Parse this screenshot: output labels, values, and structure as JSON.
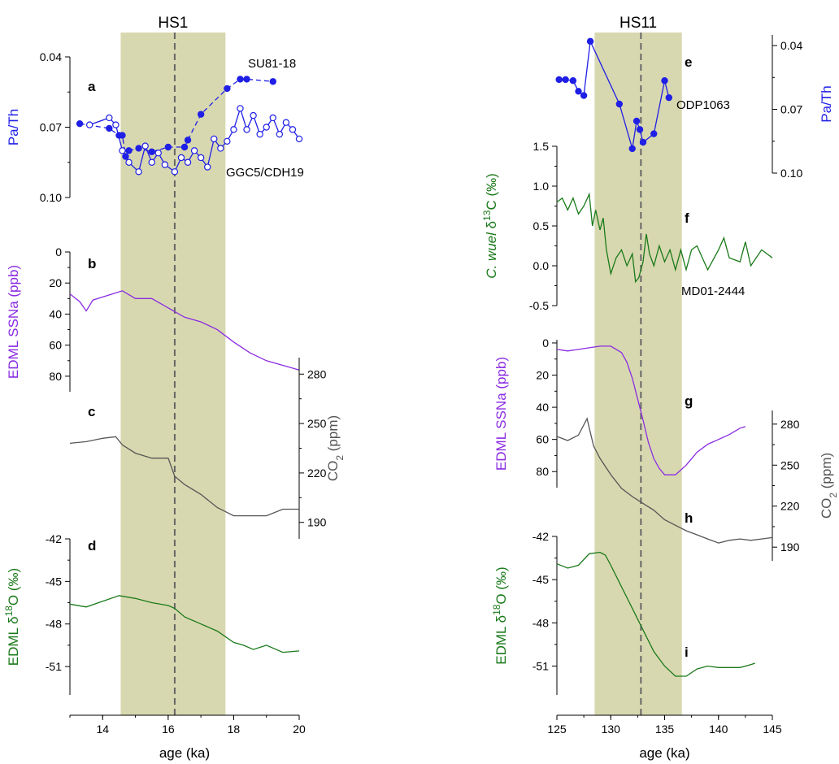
{
  "colors": {
    "pa": "#1f1fe6",
    "ssna": "#8a2be2",
    "co2": "#555555",
    "d18o": "#1a7a1a",
    "d13c": "#1a7a1a",
    "band": "#d8d8b0",
    "dash": "#666666"
  },
  "chart_data": [
    {
      "type": "line",
      "title": "HS1",
      "xlabel": "age (ka)",
      "xlim": [
        13,
        20
      ],
      "xticks": [
        "14",
        "16",
        "18",
        "20"
      ],
      "shaded_interval": [
        14.55,
        17.75
      ],
      "dashed_line": 16.2,
      "panels": [
        {
          "letter": "a",
          "ylabel": "Pa/Th",
          "ylim": [
            0.04,
            0.1
          ],
          "inverted": true,
          "yticks": [
            "0.04",
            "0.07",
            "0.10"
          ],
          "series": [
            {
              "name": "SU81-18",
              "marker": "filled",
              "dashed": true,
              "x": [
                13.3,
                14.2,
                14.5,
                14.6,
                14.7,
                14.8,
                15.1,
                15.5,
                16.0,
                16.5,
                16.6,
                17.0,
                17.8,
                18.2,
                18.4,
                19.2
              ],
              "y": [
                0.0685,
                0.0705,
                0.0735,
                0.0735,
                0.0825,
                0.08,
                0.079,
                0.0805,
                0.0785,
                0.0785,
                0.0755,
                0.0645,
                0.0535,
                0.0495,
                0.0495,
                0.0505
              ]
            },
            {
              "name": "GGC5/CDH19",
              "marker": "open",
              "dashed": false,
              "x": [
                13.6,
                14.2,
                14.4,
                14.6,
                14.8,
                15.1,
                15.3,
                15.5,
                15.7,
                15.9,
                16.2,
                16.4,
                16.6,
                16.8,
                17.0,
                17.2,
                17.4,
                17.6,
                17.8,
                18.0,
                18.2,
                18.4,
                18.6,
                18.8,
                19.0,
                19.2,
                19.4,
                19.6,
                19.8,
                20.0
              ],
              "y": [
                0.069,
                0.066,
                0.069,
                0.08,
                0.085,
                0.089,
                0.078,
                0.085,
                0.081,
                0.086,
                0.089,
                0.083,
                0.085,
                0.08,
                0.083,
                0.087,
                0.075,
                0.079,
                0.076,
                0.071,
                0.062,
                0.071,
                0.065,
                0.073,
                0.07,
                0.066,
                0.073,
                0.068,
                0.071,
                0.075
              ]
            }
          ]
        },
        {
          "letter": "b",
          "ylabel": "EDML SSNa (ppb)",
          "ylim": [
            0,
            90
          ],
          "inverted": true,
          "yticks": [
            "0",
            "20",
            "40",
            "60",
            "80"
          ],
          "series": [
            {
              "name": "",
              "x": [
                13.0,
                13.3,
                13.5,
                13.7,
                14.0,
                14.3,
                14.6,
                15.0,
                15.5,
                16.0,
                16.5,
                17.0,
                17.5,
                18.0,
                18.5,
                19.0,
                19.5,
                20.0
              ],
              "y": [
                27,
                32,
                38,
                31,
                29,
                27,
                25,
                30,
                30,
                36,
                42,
                45,
                50,
                58,
                65,
                70,
                73,
                76
              ]
            }
          ]
        },
        {
          "letter": "c",
          "ylabel": "CO2 (ppm)",
          "ylim": [
            180,
            290
          ],
          "yticks": [
            "190",
            "220",
            "250",
            "280"
          ],
          "series": [
            {
              "name": "",
              "x": [
                13.0,
                13.5,
                14.0,
                14.4,
                14.6,
                15.0,
                15.5,
                16.0,
                16.2,
                16.5,
                17.0,
                17.5,
                18.0,
                18.5,
                19.0,
                19.5,
                20.0
              ],
              "y": [
                238,
                239,
                241,
                242,
                237,
                232,
                229,
                229,
                218,
                213,
                207,
                199,
                194,
                194,
                194,
                198,
                198
              ]
            }
          ]
        },
        {
          "letter": "d",
          "ylabel": "EDML δ18O (‰)",
          "ylim": [
            -53,
            -42
          ],
          "yticks": [
            "-42",
            "-45",
            "-48",
            "-51"
          ],
          "series": [
            {
              "name": "",
              "x": [
                13.0,
                13.5,
                14.0,
                14.5,
                15.0,
                15.5,
                16.0,
                16.2,
                16.5,
                17.0,
                17.5,
                18.0,
                18.3,
                18.6,
                19.0,
                19.5,
                20.0
              ],
              "y": [
                -46.6,
                -46.8,
                -46.4,
                -46.0,
                -46.2,
                -46.5,
                -46.7,
                -46.9,
                -47.5,
                -48.0,
                -48.5,
                -49.3,
                -49.5,
                -49.8,
                -49.5,
                -50.0,
                -49.9
              ]
            }
          ]
        }
      ]
    },
    {
      "type": "line",
      "title": "HS11",
      "xlabel": "age (ka)",
      "xlim": [
        125,
        145
      ],
      "xticks": [
        "125",
        "130",
        "135",
        "140",
        "145"
      ],
      "shaded_interval": [
        128.5,
        136.6
      ],
      "dashed_line": 132.8,
      "panels": [
        {
          "letter": "e",
          "ylabel": "Pa/Th",
          "ylim": [
            0.035,
            0.1
          ],
          "inverted": true,
          "yticks": [
            "0.04",
            "0.07",
            "0.10"
          ],
          "series": [
            {
              "name": "ODP1063",
              "marker": "filled",
              "dashed": false,
              "x": [
                125.2,
                125.8,
                126.5,
                127.0,
                127.5,
                128.1,
                130.8,
                132.0,
                132.4,
                132.7,
                133.0,
                134.0,
                135.0,
                135.4
              ],
              "y": [
                0.056,
                0.056,
                0.0565,
                0.0615,
                0.0635,
                0.038,
                0.0675,
                0.0885,
                0.0755,
                0.0795,
                0.0855,
                0.0815,
                0.0565,
                0.0645
              ]
            }
          ]
        },
        {
          "letter": "f",
          "ylabel": "C. wuel δ13C (‰)",
          "ylim": [
            -0.5,
            1.5
          ],
          "yticks": [
            "1.5",
            "1.0",
            "0.5",
            "0.0",
            "-0.5"
          ],
          "series": [
            {
              "name": "MD01-2444",
              "x": [
                125.0,
                125.5,
                126.0,
                126.5,
                127.0,
                127.5,
                128.0,
                128.3,
                128.6,
                129.0,
                129.3,
                129.6,
                130.0,
                130.5,
                131.0,
                131.5,
                132.0,
                132.3,
                132.6,
                133.0,
                133.3,
                133.6,
                134.0,
                134.5,
                135.0,
                135.5,
                136.0,
                136.5,
                137.0,
                137.5,
                138.0,
                139.0,
                140.0,
                140.5,
                141.0,
                142.0,
                142.5,
                143.0,
                143.5,
                144.0,
                145.0
              ],
              "y": [
                0.8,
                0.85,
                0.7,
                0.85,
                0.65,
                0.75,
                0.9,
                0.5,
                0.7,
                0.45,
                0.6,
                0.2,
                -0.1,
                0.1,
                0.2,
                0.0,
                0.15,
                -0.2,
                -0.15,
                0.05,
                0.4,
                0.15,
                0.0,
                0.25,
                0.05,
                0.2,
                -0.05,
                0.2,
                -0.05,
                0.2,
                0.25,
                -0.05,
                0.2,
                0.35,
                0.1,
                0.05,
                0.3,
                0.0,
                0.1,
                0.2,
                0.1
              ]
            }
          ]
        },
        {
          "letter": "g",
          "ylabel": "EDML SSNa (ppb)",
          "ylim": [
            -2,
            90
          ],
          "inverted": true,
          "yticks": [
            "0",
            "20",
            "40",
            "60",
            "80"
          ],
          "series": [
            {
              "name": "",
              "x": [
                125.0,
                126.0,
                127.0,
                128.0,
                129.0,
                130.0,
                131.0,
                131.5,
                132.0,
                132.5,
                133.0,
                133.5,
                134.0,
                134.5,
                135.0,
                136.0,
                137.0,
                138.0,
                139.0,
                140.0,
                141.0,
                142.0,
                142.5
              ],
              "y": [
                4,
                5,
                4,
                3,
                2,
                2,
                6,
                12,
                22,
                35,
                48,
                62,
                72,
                78,
                82,
                82,
                76,
                68,
                63,
                60,
                57,
                53,
                52
              ]
            }
          ]
        },
        {
          "letter": "h",
          "ylabel": "CO2 (ppm)",
          "ylim": [
            180,
            290
          ],
          "yticks": [
            "190",
            "220",
            "250",
            "280"
          ],
          "series": [
            {
              "name": "",
              "x": [
                125.0,
                126.0,
                127.0,
                127.8,
                128.4,
                129.0,
                130.0,
                131.0,
                132.0,
                133.0,
                134.0,
                135.0,
                136.0,
                137.0,
                138.0,
                139.0,
                140.0,
                141.0,
                142.0,
                143.0,
                144.0,
                145.0
              ],
              "y": [
                271,
                268,
                272,
                284,
                264,
                255,
                243,
                233,
                227,
                222,
                217,
                210,
                206,
                202,
                199,
                196,
                193,
                195,
                196,
                195,
                196,
                197
              ]
            }
          ]
        },
        {
          "letter": "i",
          "ylabel": "EDML δ18O (‰)",
          "ylim": [
            -53,
            -42
          ],
          "yticks": [
            "-42",
            "-45",
            "-48",
            "-51"
          ],
          "series": [
            {
              "name": "",
              "x": [
                125.0,
                126.0,
                127.0,
                128.0,
                129.0,
                129.5,
                130.0,
                131.0,
                132.0,
                133.0,
                134.0,
                135.0,
                136.0,
                137.0,
                138.0,
                139.0,
                140.0,
                141.0,
                142.0,
                143.0,
                143.4
              ],
              "y": [
                -43.9,
                -44.2,
                -44.0,
                -43.2,
                -43.1,
                -43.3,
                -44.0,
                -45.5,
                -47.0,
                -48.5,
                -50.0,
                -51.0,
                -51.7,
                -51.7,
                -51.2,
                -51.0,
                -51.1,
                -51.1,
                -51.1,
                -50.9,
                -50.8
              ]
            }
          ]
        }
      ]
    }
  ]
}
